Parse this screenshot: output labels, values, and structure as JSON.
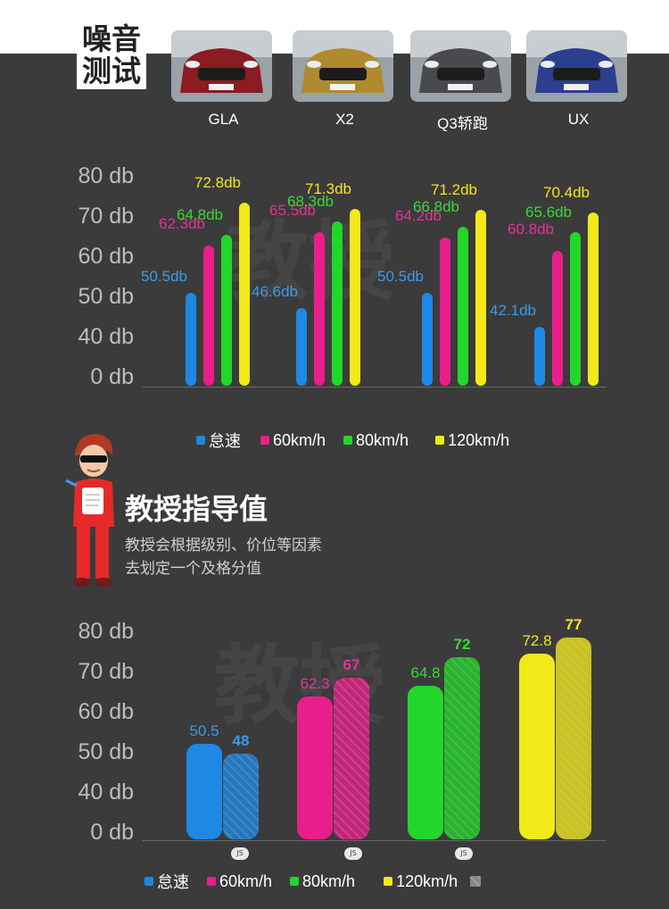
{
  "header": {
    "title_line1": "噪音",
    "title_line2": "测试"
  },
  "cars": [
    {
      "name": "GLA",
      "color": "#8a1c22"
    },
    {
      "name": "X2",
      "color": "#b08a2e"
    },
    {
      "name": "Q3轿跑",
      "color": "#4a4a4e"
    },
    {
      "name": "UX",
      "color": "#2b3f8f"
    }
  ],
  "colors": {
    "idle": "#1e88e5",
    "kmh60": "#e91e8c",
    "kmh80": "#22d62a",
    "kmh120": "#f2e81a",
    "label_idle": "#3a9ae8",
    "label_60": "#e8309a",
    "label_80": "#3ad63a",
    "label_120": "#f4e61e"
  },
  "legend": {
    "idle": "怠速",
    "kmh60": "60km/h",
    "kmh80": "80km/h",
    "kmh120": "120km/h"
  },
  "section": {
    "title": "教授指导值",
    "desc_line1": "教授会根据级别、价位等因素",
    "desc_line2": "去划定一个及格分值"
  },
  "badge_text": "JS",
  "chart_data": [
    {
      "type": "bar",
      "yticks": [
        "80 db",
        "70 db",
        "60 db",
        "50 db",
        "40 db",
        "0 db"
      ],
      "categories": [
        "GLA",
        "X2",
        "Q3轿跑",
        "UX"
      ],
      "series": [
        {
          "name": "怠速",
          "values": [
            50.5,
            46.6,
            50.5,
            42.1
          ],
          "labels": [
            "50.5db",
            "46.6db",
            "50.5db",
            "42.1db"
          ]
        },
        {
          "name": "60km/h",
          "values": [
            62.3,
            65.5,
            64.2,
            60.8
          ],
          "labels": [
            "62.3db",
            "65.5db",
            "64.2db",
            "60.8db"
          ]
        },
        {
          "name": "80km/h",
          "values": [
            64.8,
            68.3,
            66.8,
            65.6
          ],
          "labels": [
            "64.8db",
            "68.3db",
            "66.8db",
            "65.6db"
          ]
        },
        {
          "name": "120km/h",
          "values": [
            72.8,
            71.3,
            71.2,
            70.4
          ],
          "labels": [
            "72.8db",
            "71.3db",
            "71.2db",
            "70.4db"
          ]
        }
      ]
    },
    {
      "type": "bar",
      "yticks": [
        "80 db",
        "70 db",
        "60 db",
        "50 db",
        "40 db",
        "0 db"
      ],
      "categories": [
        "怠速",
        "60km/h",
        "80km/h",
        "120km/h"
      ],
      "series": [
        {
          "values": [
            50.5,
            62.3,
            64.8,
            72.8
          ],
          "labels": [
            "50.5",
            "62.3",
            "64.8",
            "72.8"
          ]
        },
        {
          "values": [
            48,
            67,
            72,
            77
          ],
          "labels": [
            "48",
            "67",
            "72",
            "77"
          ]
        }
      ]
    }
  ]
}
